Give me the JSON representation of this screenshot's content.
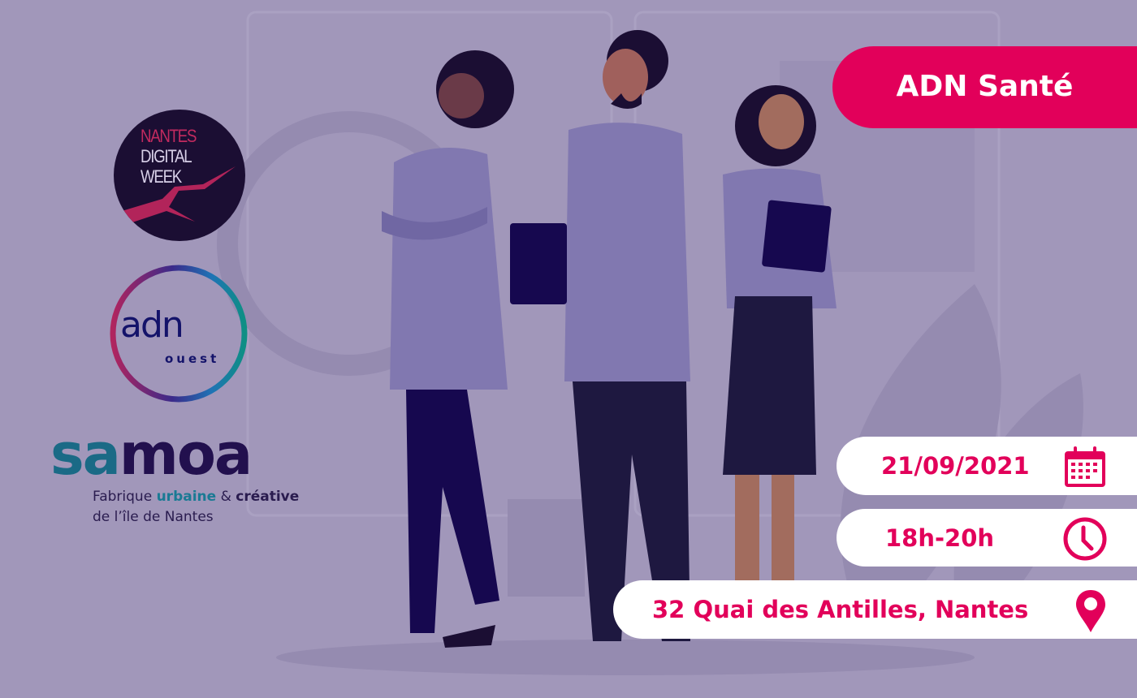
{
  "event": {
    "title": "ADN Santé",
    "date": "21/09/2021",
    "time": "18h-20h",
    "address": "32 Quai des Antilles, Nantes"
  },
  "icons": {
    "date": "calendar-icon",
    "time": "clock-icon",
    "address": "map-pin-icon"
  },
  "logos": {
    "nantes_digital_week": [
      "NANTES",
      "DIGITAL",
      "WEEK"
    ],
    "adn_ouest": {
      "word": "adn",
      "sub": "ouest"
    },
    "samoa": {
      "word_a": "sa",
      "word_b": "moa",
      "tagline_1a": "Fabrique ",
      "tagline_1b": "urbaine",
      "tagline_1c": " & ",
      "tagline_1d": "créative",
      "tagline_2": "de l’île de Nantes"
    }
  },
  "colors": {
    "accent": "#e2005a",
    "background": "#a197ba",
    "navy": "#1b0e33"
  }
}
